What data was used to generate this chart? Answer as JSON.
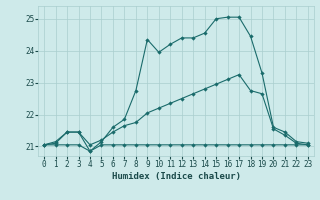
{
  "xlabel": "Humidex (Indice chaleur)",
  "xlim": [
    -0.5,
    23.5
  ],
  "ylim": [
    20.7,
    25.4
  ],
  "yticks": [
    21,
    22,
    23,
    24,
    25
  ],
  "xticks": [
    0,
    1,
    2,
    3,
    4,
    5,
    6,
    7,
    8,
    9,
    10,
    11,
    12,
    13,
    14,
    15,
    16,
    17,
    18,
    19,
    20,
    21,
    22,
    23
  ],
  "bg_color": "#ceeaea",
  "grid_color": "#aacece",
  "line_color": "#1a6b6b",
  "line1_x": [
    0,
    1,
    2,
    3,
    4,
    5,
    6,
    7,
    8,
    9,
    10,
    11,
    12,
    13,
    14,
    15,
    16,
    17,
    18,
    19,
    20,
    21,
    22,
    23
  ],
  "line1_y": [
    21.05,
    21.15,
    21.45,
    21.45,
    20.85,
    21.15,
    21.6,
    21.85,
    22.75,
    24.35,
    23.95,
    24.2,
    24.4,
    24.4,
    24.55,
    25.0,
    25.05,
    25.05,
    24.45,
    23.3,
    21.6,
    21.45,
    21.15,
    21.1
  ],
  "line2_x": [
    0,
    1,
    2,
    3,
    4,
    5,
    6,
    7,
    8,
    9,
    10,
    11,
    12,
    13,
    14,
    15,
    16,
    17,
    18,
    19,
    20,
    21,
    22,
    23
  ],
  "line2_y": [
    21.05,
    21.1,
    21.45,
    21.45,
    21.05,
    21.2,
    21.45,
    21.65,
    21.75,
    22.05,
    22.2,
    22.35,
    22.5,
    22.65,
    22.8,
    22.95,
    23.1,
    23.25,
    22.75,
    22.65,
    21.55,
    21.35,
    21.1,
    21.05
  ],
  "line3_x": [
    0,
    1,
    2,
    3,
    4,
    5,
    6,
    7,
    8,
    9,
    10,
    11,
    12,
    13,
    14,
    15,
    16,
    17,
    18,
    19,
    20,
    21,
    22,
    23
  ],
  "line3_y": [
    21.05,
    21.05,
    21.05,
    21.05,
    20.85,
    21.05,
    21.05,
    21.05,
    21.05,
    21.05,
    21.05,
    21.05,
    21.05,
    21.05,
    21.05,
    21.05,
    21.05,
    21.05,
    21.05,
    21.05,
    21.05,
    21.05,
    21.05,
    21.05
  ]
}
